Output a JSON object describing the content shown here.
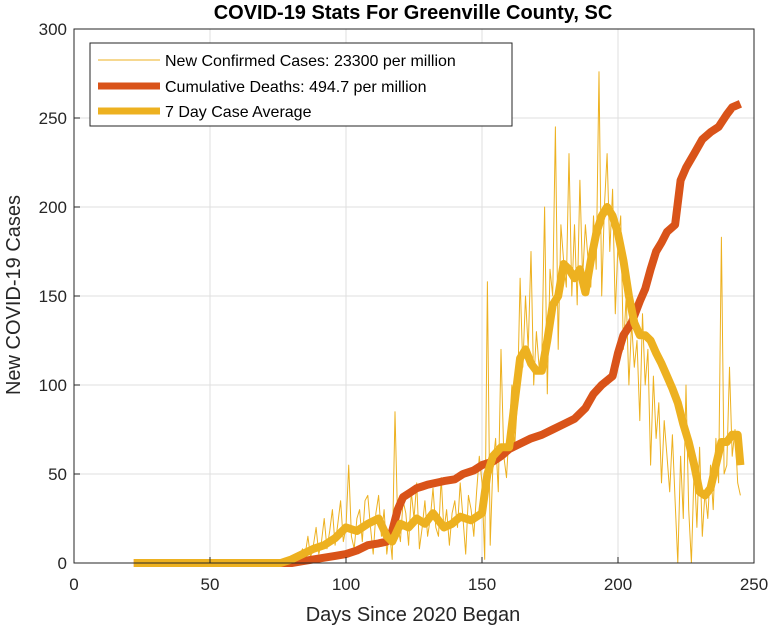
{
  "chart_data": {
    "type": "line",
    "title": "COVID-19 Stats For Greenville County, SC",
    "xlabel": "Days Since 2020 Began",
    "ylabel": "New COVID-19 Cases",
    "xlim": [
      0,
      250
    ],
    "ylim": [
      0,
      300
    ],
    "xticks": [
      0,
      50,
      100,
      150,
      200,
      250
    ],
    "yticks": [
      0,
      50,
      100,
      150,
      200,
      250,
      300
    ],
    "grid": true,
    "legend_position": "top-left",
    "series": [
      {
        "name": "New Confirmed Cases: 23300 per million",
        "color": "#EDB120",
        "style": "thin",
        "points": [
          [
            22,
            0
          ],
          [
            40,
            0
          ],
          [
            60,
            0
          ],
          [
            76,
            0
          ],
          [
            78,
            1
          ],
          [
            80,
            3
          ],
          [
            82,
            0
          ],
          [
            84,
            8
          ],
          [
            85,
            5
          ],
          [
            86,
            15
          ],
          [
            87,
            3
          ],
          [
            88,
            10
          ],
          [
            89,
            20
          ],
          [
            90,
            5
          ],
          [
            91,
            12
          ],
          [
            92,
            25
          ],
          [
            93,
            8
          ],
          [
            94,
            18
          ],
          [
            95,
            30
          ],
          [
            96,
            10
          ],
          [
            97,
            22
          ],
          [
            98,
            35
          ],
          [
            99,
            12
          ],
          [
            100,
            20
          ],
          [
            101,
            55
          ],
          [
            102,
            15
          ],
          [
            103,
            8
          ],
          [
            104,
            25
          ],
          [
            105,
            30
          ],
          [
            106,
            12
          ],
          [
            107,
            35
          ],
          [
            108,
            38
          ],
          [
            109,
            20
          ],
          [
            110,
            5
          ],
          [
            111,
            28
          ],
          [
            112,
            38
          ],
          [
            113,
            15
          ],
          [
            114,
            30
          ],
          [
            115,
            5
          ],
          [
            116,
            18
          ],
          [
            117,
            2
          ],
          [
            118,
            85
          ],
          [
            119,
            22
          ],
          [
            120,
            12
          ],
          [
            121,
            35
          ],
          [
            122,
            28
          ],
          [
            123,
            10
          ],
          [
            124,
            40
          ],
          [
            125,
            25
          ],
          [
            126,
            45
          ],
          [
            127,
            8
          ],
          [
            128,
            20
          ],
          [
            129,
            35
          ],
          [
            130,
            15
          ],
          [
            131,
            25
          ],
          [
            132,
            42
          ],
          [
            133,
            20
          ],
          [
            134,
            15
          ],
          [
            135,
            48
          ],
          [
            136,
            18
          ],
          [
            137,
            30
          ],
          [
            138,
            10
          ],
          [
            139,
            28
          ],
          [
            140,
            35
          ],
          [
            141,
            20
          ],
          [
            142,
            45
          ],
          [
            143,
            25
          ],
          [
            144,
            5
          ],
          [
            145,
            38
          ],
          [
            146,
            30
          ],
          [
            147,
            15
          ],
          [
            148,
            40
          ],
          [
            149,
            60
          ],
          [
            150,
            45
          ],
          [
            151,
            2
          ],
          [
            152,
            158
          ],
          [
            153,
            10
          ],
          [
            154,
            55
          ],
          [
            155,
            70
          ],
          [
            156,
            40
          ],
          [
            157,
            120
          ],
          [
            158,
            60
          ],
          [
            159,
            48
          ],
          [
            160,
            75
          ],
          [
            161,
            100
          ],
          [
            162,
            65
          ],
          [
            163,
            90
          ],
          [
            164,
            160
          ],
          [
            165,
            110
          ],
          [
            166,
            150
          ],
          [
            167,
            120
          ],
          [
            168,
            175
          ],
          [
            169,
            100
          ],
          [
            170,
            130
          ],
          [
            171,
            110
          ],
          [
            172,
            115
          ],
          [
            173,
            200
          ],
          [
            174,
            95
          ],
          [
            175,
            165
          ],
          [
            176,
            150
          ],
          [
            177,
            245
          ],
          [
            178,
            120
          ],
          [
            179,
            190
          ],
          [
            180,
            170
          ],
          [
            181,
            155
          ],
          [
            182,
            230
          ],
          [
            183,
            150
          ],
          [
            184,
            190
          ],
          [
            185,
            145
          ],
          [
            186,
            215
          ],
          [
            187,
            160
          ],
          [
            188,
            190
          ],
          [
            189,
            170
          ],
          [
            190,
            155
          ],
          [
            191,
            195
          ],
          [
            192,
            165
          ],
          [
            193,
            276
          ],
          [
            194,
            150
          ],
          [
            195,
            200
          ],
          [
            196,
            230
          ],
          [
            197,
            175
          ],
          [
            198,
            210
          ],
          [
            199,
            140
          ],
          [
            200,
            180
          ],
          [
            201,
            195
          ],
          [
            202,
            120
          ],
          [
            203,
            150
          ],
          [
            204,
            100
          ],
          [
            205,
            135
          ],
          [
            206,
            110
          ],
          [
            207,
            125
          ],
          [
            208,
            80
          ],
          [
            209,
            140
          ],
          [
            210,
            100
          ],
          [
            211,
            120
          ],
          [
            212,
            55
          ],
          [
            213,
            105
          ],
          [
            214,
            70
          ],
          [
            215,
            90
          ],
          [
            216,
            45
          ],
          [
            217,
            80
          ],
          [
            218,
            60
          ],
          [
            219,
            40
          ],
          [
            220,
            72
          ],
          [
            221,
            35
          ],
          [
            222,
            0
          ],
          [
            223,
            60
          ],
          [
            224,
            25
          ],
          [
            225,
            100
          ],
          [
            226,
            30
          ],
          [
            227,
            0
          ],
          [
            228,
            55
          ],
          [
            229,
            20
          ],
          [
            230,
            65
          ],
          [
            231,
            15
          ],
          [
            232,
            40
          ],
          [
            233,
            25
          ],
          [
            234,
            55
          ],
          [
            235,
            30
          ],
          [
            236,
            70
          ],
          [
            237,
            45
          ],
          [
            238,
            183
          ],
          [
            239,
            50
          ],
          [
            240,
            55
          ],
          [
            241,
            110
          ],
          [
            242,
            60
          ],
          [
            243,
            75
          ],
          [
            244,
            45
          ],
          [
            245,
            38
          ]
        ]
      },
      {
        "name": "Cumulative Deaths: 494.7 per million",
        "color": "#D95319",
        "style": "thick",
        "points": [
          [
            22,
            0
          ],
          [
            80,
            0
          ],
          [
            84,
            1
          ],
          [
            88,
            2
          ],
          [
            92,
            3
          ],
          [
            96,
            4
          ],
          [
            100,
            5
          ],
          [
            104,
            7
          ],
          [
            108,
            10
          ],
          [
            112,
            11
          ],
          [
            115,
            12
          ],
          [
            117,
            18
          ],
          [
            119,
            30
          ],
          [
            121,
            37
          ],
          [
            124,
            40
          ],
          [
            126,
            42
          ],
          [
            128,
            43
          ],
          [
            130,
            44
          ],
          [
            133,
            45
          ],
          [
            136,
            46
          ],
          [
            140,
            47
          ],
          [
            143,
            50
          ],
          [
            147,
            52
          ],
          [
            150,
            55
          ],
          [
            154,
            57
          ],
          [
            157,
            60
          ],
          [
            160,
            64
          ],
          [
            164,
            67
          ],
          [
            168,
            70
          ],
          [
            172,
            72
          ],
          [
            176,
            75
          ],
          [
            180,
            78
          ],
          [
            184,
            81
          ],
          [
            188,
            87
          ],
          [
            191,
            95
          ],
          [
            194,
            100
          ],
          [
            198,
            105
          ],
          [
            200,
            118
          ],
          [
            202,
            128
          ],
          [
            205,
            135
          ],
          [
            208,
            147
          ],
          [
            210,
            154
          ],
          [
            212,
            165
          ],
          [
            214,
            175
          ],
          [
            216,
            180
          ],
          [
            218,
            186
          ],
          [
            221,
            190
          ],
          [
            223,
            215
          ],
          [
            225,
            222
          ],
          [
            228,
            230
          ],
          [
            231,
            238
          ],
          [
            234,
            242
          ],
          [
            237,
            245
          ],
          [
            240,
            252
          ],
          [
            242,
            256
          ],
          [
            245,
            258
          ]
        ]
      },
      {
        "name": "7 Day Case Average",
        "color": "#EDB120",
        "style": "thick",
        "points": [
          [
            22,
            0
          ],
          [
            76,
            0
          ],
          [
            80,
            2
          ],
          [
            84,
            5
          ],
          [
            88,
            8
          ],
          [
            92,
            10
          ],
          [
            96,
            14
          ],
          [
            100,
            20
          ],
          [
            104,
            18
          ],
          [
            108,
            22
          ],
          [
            112,
            25
          ],
          [
            115,
            15
          ],
          [
            117,
            12
          ],
          [
            120,
            22
          ],
          [
            123,
            20
          ],
          [
            126,
            25
          ],
          [
            129,
            22
          ],
          [
            132,
            28
          ],
          [
            136,
            20
          ],
          [
            139,
            22
          ],
          [
            142,
            26
          ],
          [
            146,
            24
          ],
          [
            150,
            28
          ],
          [
            152,
            50
          ],
          [
            154,
            60
          ],
          [
            157,
            65
          ],
          [
            160,
            65
          ],
          [
            162,
            90
          ],
          [
            164,
            115
          ],
          [
            166,
            120
          ],
          [
            168,
            112
          ],
          [
            170,
            108
          ],
          [
            172,
            108
          ],
          [
            174,
            125
          ],
          [
            176,
            145
          ],
          [
            178,
            150
          ],
          [
            180,
            168
          ],
          [
            182,
            165
          ],
          [
            184,
            160
          ],
          [
            186,
            165
          ],
          [
            188,
            152
          ],
          [
            190,
            170
          ],
          [
            192,
            185
          ],
          [
            194,
            195
          ],
          [
            196,
            200
          ],
          [
            198,
            195
          ],
          [
            200,
            185
          ],
          [
            202,
            170
          ],
          [
            204,
            150
          ],
          [
            206,
            135
          ],
          [
            208,
            128
          ],
          [
            210,
            128
          ],
          [
            212,
            125
          ],
          [
            214,
            118
          ],
          [
            216,
            112
          ],
          [
            218,
            105
          ],
          [
            220,
            98
          ],
          [
            222,
            90
          ],
          [
            224,
            78
          ],
          [
            226,
            68
          ],
          [
            228,
            55
          ],
          [
            230,
            40
          ],
          [
            232,
            38
          ],
          [
            234,
            42
          ],
          [
            236,
            55
          ],
          [
            238,
            68
          ],
          [
            240,
            68
          ],
          [
            242,
            72
          ],
          [
            244,
            72
          ],
          [
            245,
            55
          ]
        ]
      }
    ]
  }
}
